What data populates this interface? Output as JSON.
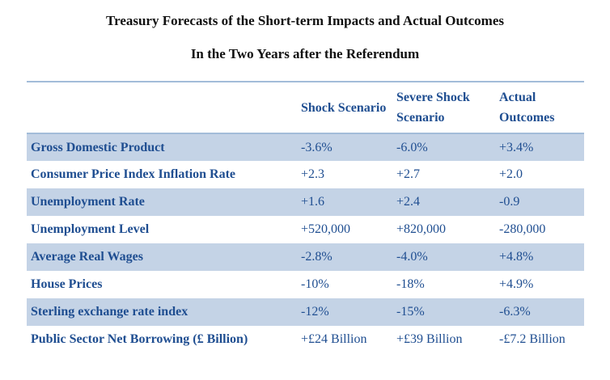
{
  "title": {
    "line1": "Treasury Forecasts of the Short-term Impacts and Actual Outcomes",
    "line2": "In the Two Years after the Referendum"
  },
  "colors": {
    "text_blue": "#1F4E91",
    "row_blue": "#C4D3E6",
    "line_blue": "#A3BCD9",
    "title_black": "#111111"
  },
  "table": {
    "headers": [
      {
        "label": ""
      },
      {
        "label": "Shock Scenario"
      },
      {
        "label": "Severe Shock Scenario"
      },
      {
        "label": "Actual Outcomes"
      }
    ],
    "rows": [
      {
        "label": "Gross Domestic Product",
        "shock": "-3.6%",
        "severe": "-6.0%",
        "actual": "+3.4%"
      },
      {
        "label": "Consumer Price Index Inflation Rate",
        "shock": "+2.3",
        "severe": "+2.7",
        "actual": "+2.0"
      },
      {
        "label": "Unemployment Rate",
        "shock": "+1.6",
        "severe": "+2.4",
        "actual": "-0.9"
      },
      {
        "label": "Unemployment Level",
        "shock": "+520,000",
        "severe": "+820,000",
        "actual": "-280,000"
      },
      {
        "label": "Average Real Wages",
        "shock": "-2.8%",
        "severe": "-4.0%",
        "actual": "+4.8%"
      },
      {
        "label": "House Prices",
        "shock": "-10%",
        "severe": "-18%",
        "actual": "+4.9%"
      },
      {
        "label": "Sterling exchange rate index",
        "shock": "-12%",
        "severe": "-15%",
        "actual": "-6.3%"
      },
      {
        "label": "Public Sector Net Borrowing (£ Billion)",
        "shock": "+£24 Billion",
        "severe": "+£39 Billion",
        "actual": "-£7.2 Billion"
      }
    ]
  }
}
